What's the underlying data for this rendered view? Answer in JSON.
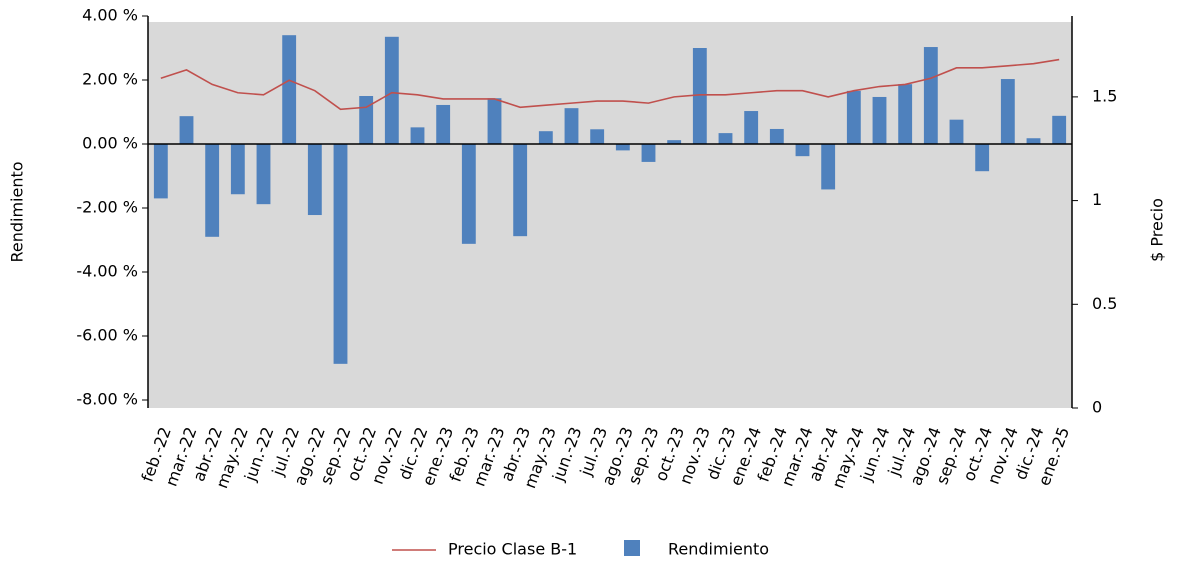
{
  "chart_data": {
    "type": "bar",
    "categories": [
      "feb.-22",
      "mar.-22",
      "abr.-22",
      "may.-22",
      "jun.-22",
      "jul.-22",
      "ago.-22",
      "sep.-22",
      "oct.-22",
      "nov.-22",
      "dic.-22",
      "ene.-23",
      "feb.-23",
      "mar.-23",
      "abr.-23",
      "may.-23",
      "jun.-23",
      "jul.-23",
      "ago.-23",
      "sep.-23",
      "oct.-23",
      "nov.-23",
      "dic.-23",
      "ene.-24",
      "feb.-24",
      "mar.-24",
      "abr.-24",
      "may.-24",
      "jun.-24",
      "jul.-24",
      "ago.-24",
      "sep.-24",
      "oct.-24",
      "nov.-24",
      "dic.-24",
      "ene.-25"
    ],
    "series": [
      {
        "name": "Precio Clase B-1",
        "type": "line",
        "axis": "y2",
        "color": "#c0504d",
        "values": [
          1.59,
          1.63,
          1.56,
          1.52,
          1.51,
          1.58,
          1.53,
          1.44,
          1.45,
          1.52,
          1.51,
          1.49,
          1.49,
          1.49,
          1.45,
          1.46,
          1.47,
          1.48,
          1.48,
          1.47,
          1.5,
          1.51,
          1.51,
          1.52,
          1.53,
          1.53,
          1.5,
          1.53,
          1.55,
          1.56,
          1.59,
          1.64,
          1.64,
          1.65,
          1.66,
          1.68
        ]
      },
      {
        "name": "Rendimiento",
        "type": "bar",
        "color": "#4f81bd",
        "values": [
          -1.7,
          0.87,
          -2.9,
          -1.57,
          -1.88,
          3.4,
          -2.22,
          -6.87,
          1.5,
          3.35,
          0.52,
          1.22,
          -3.12,
          1.43,
          -2.88,
          0.4,
          1.12,
          0.46,
          -0.2,
          -0.56,
          0.12,
          3.0,
          0.34,
          1.03,
          0.47,
          -0.38,
          -1.42,
          1.66,
          1.47,
          1.87,
          3.03,
          0.76,
          -0.85,
          2.03,
          0.18,
          0.88
        ]
      }
    ],
    "ylabel": "Rendimiento",
    "y2label": "$ Precio",
    "ylim": [
      -8.25,
      4
    ],
    "yticks": [
      {
        "value": 4,
        "label": "4.00 %"
      },
      {
        "value": 2,
        "label": "2.00 %"
      },
      {
        "value": 0,
        "label": "0.00 %"
      },
      {
        "value": -2,
        "label": "-2.00 %"
      },
      {
        "value": -4,
        "label": "-4.00 %"
      },
      {
        "value": -6,
        "label": "-6.00 %"
      },
      {
        "value": -8,
        "label": "-8.00 %"
      }
    ],
    "y2lim": [
      0,
      1.89
    ],
    "y2ticks": [
      0,
      0.5,
      1,
      1.5
    ],
    "background": "#d9d9d9",
    "legend": "bottom"
  }
}
